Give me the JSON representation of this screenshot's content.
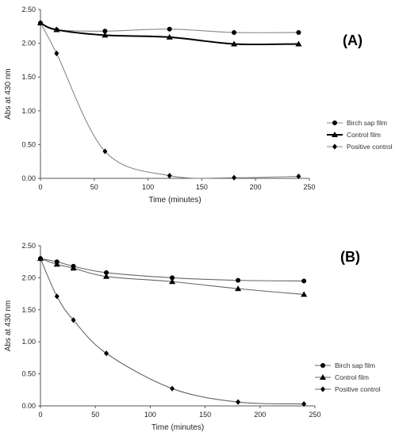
{
  "chart_data": [
    {
      "type": "line",
      "panel_label": "(A)",
      "xlabel": "Time (minutes)",
      "ylabel": "Abs at 430 nm",
      "xlim": [
        0,
        250
      ],
      "ylim": [
        0,
        2.5
      ],
      "xticks": [
        "0",
        "50",
        "100",
        "150",
        "200",
        "250"
      ],
      "yticks": [
        "0.00",
        "0.50",
        "1.00",
        "1.50",
        "2.00",
        "2.50"
      ],
      "grid": false,
      "legend_position": "right",
      "series": [
        {
          "name": "Birch sap film",
          "marker": "circle",
          "color": "#888888",
          "x": [
            0,
            15,
            60,
            120,
            180,
            240
          ],
          "y": [
            2.3,
            2.2,
            2.18,
            2.21,
            2.16,
            2.16
          ]
        },
        {
          "name": "Control film",
          "marker": "triangle",
          "color": "#000000",
          "x": [
            0,
            15,
            60,
            120,
            180,
            240
          ],
          "y": [
            2.3,
            2.2,
            2.12,
            2.09,
            1.99,
            1.99
          ]
        },
        {
          "name": "Positive control",
          "marker": "diamond",
          "color": "#888888",
          "x": [
            0,
            15,
            60,
            120,
            180,
            240
          ],
          "y": [
            2.3,
            1.85,
            0.4,
            0.04,
            0.01,
            0.03
          ]
        }
      ]
    },
    {
      "type": "line",
      "panel_label": "(B)",
      "xlabel": "Time (minutes)",
      "ylabel": "Abs at 430 nm",
      "xlim": [
        0,
        250
      ],
      "ylim": [
        0,
        2.5
      ],
      "xticks": [
        "0",
        "50",
        "100",
        "150",
        "200",
        "250"
      ],
      "yticks": [
        "0.00",
        "0.50",
        "1.00",
        "1.50",
        "2.00",
        "2.50"
      ],
      "grid": false,
      "legend_position": "right",
      "series": [
        {
          "name": "Birch sap film",
          "marker": "circle",
          "color": "#666666",
          "x": [
            0,
            15,
            30,
            60,
            120,
            180,
            240
          ],
          "y": [
            2.3,
            2.25,
            2.18,
            2.08,
            2.0,
            1.96,
            1.95
          ]
        },
        {
          "name": "Control film",
          "marker": "triangle",
          "color": "#666666",
          "x": [
            0,
            15,
            30,
            60,
            120,
            180,
            240
          ],
          "y": [
            2.3,
            2.21,
            2.15,
            2.02,
            1.94,
            1.83,
            1.74
          ]
        },
        {
          "name": "Positive control",
          "marker": "diamond",
          "color": "#666666",
          "x": [
            0,
            15,
            30,
            60,
            120,
            180,
            240
          ],
          "y": [
            2.3,
            1.71,
            1.34,
            0.82,
            0.27,
            0.06,
            0.03
          ]
        }
      ]
    }
  ]
}
